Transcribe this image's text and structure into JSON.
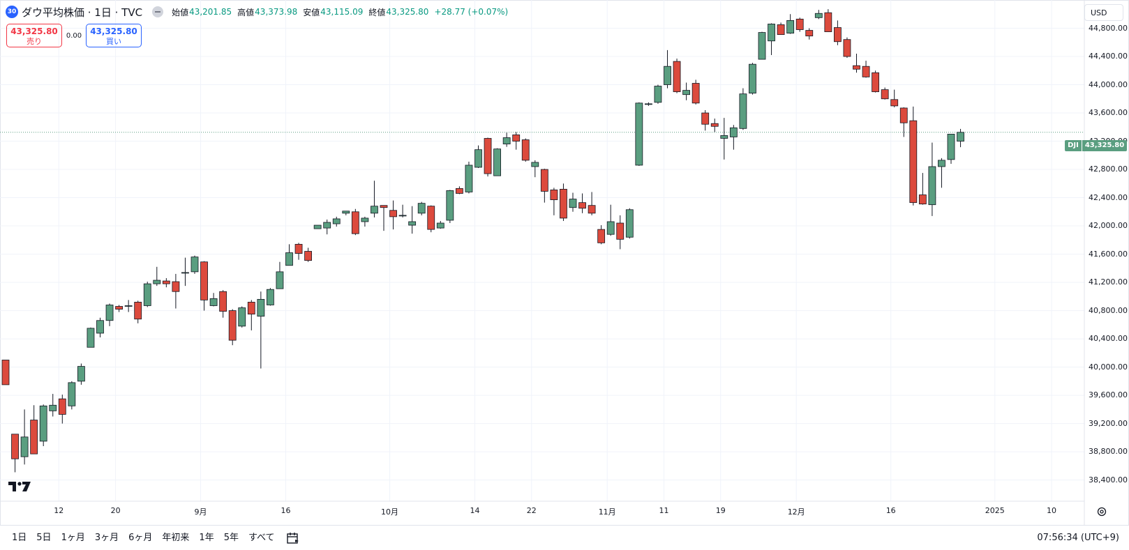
{
  "legend": {
    "badge": "30",
    "title": "ダウ平均株価 · 1日 · TVC",
    "open_label": "始値",
    "open": "43,201.85",
    "high_label": "高値",
    "high": "43,373.98",
    "low_label": "安値",
    "low": "43,115.09",
    "close_label": "終値",
    "close": "43,325.80",
    "change": "+28.77 (+0.07%)"
  },
  "trade": {
    "sell_price": "43,325.80",
    "sell_label": "売り",
    "spread": "0.00",
    "buy_price": "43,325.80",
    "buy_label": "買い"
  },
  "currency": "USD",
  "last_price_tag": {
    "symbol": "DJI",
    "price": "43,325.80"
  },
  "clock": "07:56:34 (UTC+9)",
  "ranges": [
    "1日",
    "5日",
    "1ヶ月",
    "3ヶ月",
    "6ヶ月",
    "年初来",
    "1年",
    "5年",
    "すべて"
  ],
  "colors": {
    "up": "#5a9e80",
    "down": "#dc4a3d",
    "wick": "#131722",
    "accent": "#2962ff"
  },
  "chart_data": {
    "type": "candlestick",
    "symbol": "DJI",
    "ylim": [
      38100,
      45200
    ],
    "y_ticks": [
      38400,
      38800,
      39200,
      39600,
      40000,
      40400,
      40800,
      41200,
      41600,
      42000,
      42400,
      42800,
      43200,
      43600,
      44000,
      44400,
      44800
    ],
    "y_tick_labels": [
      "38,400.00",
      "38,800.00",
      "39,200.00",
      "39,600.00",
      "40,000.00",
      "40,400.00",
      "40,800.00",
      "41,200.00",
      "41,600.00",
      "42,000.00",
      "42,400.00",
      "42,800.00",
      "43,200.00",
      "43,600.00",
      "44,000.00",
      "44,400.00",
      "44,800.00"
    ],
    "x_ticks": [
      {
        "label": "12",
        "index": 6
      },
      {
        "label": "20",
        "index": 12
      },
      {
        "label": "9月",
        "index": 21
      },
      {
        "label": "16",
        "index": 30
      },
      {
        "label": "10月",
        "index": 41
      },
      {
        "label": "14",
        "index": 50
      },
      {
        "label": "22",
        "index": 56
      },
      {
        "label": "11月",
        "index": 64
      },
      {
        "label": "11",
        "index": 70
      },
      {
        "label": "19",
        "index": 76
      },
      {
        "label": "12月",
        "index": 84
      },
      {
        "label": "16",
        "index": 94
      },
      {
        "label": "2025",
        "index": 105
      },
      {
        "label": "10",
        "index": 111
      }
    ],
    "last_close": 43325.8,
    "candles": [
      {
        "o": 40100,
        "h": 40100,
        "l": 39750,
        "c": 39750
      },
      {
        "o": 39050,
        "h": 39050,
        "l": 38510,
        "c": 38700
      },
      {
        "o": 38730,
        "h": 39400,
        "l": 38620,
        "c": 39010
      },
      {
        "o": 39250,
        "h": 39460,
        "l": 38820,
        "c": 38770
      },
      {
        "o": 38950,
        "h": 39470,
        "l": 38880,
        "c": 39450
      },
      {
        "o": 39380,
        "h": 39620,
        "l": 39300,
        "c": 39460
      },
      {
        "o": 39550,
        "h": 39610,
        "l": 39200,
        "c": 39330
      },
      {
        "o": 39450,
        "h": 39800,
        "l": 39400,
        "c": 39780
      },
      {
        "o": 39800,
        "h": 40050,
        "l": 39750,
        "c": 40010
      },
      {
        "o": 40280,
        "h": 40560,
        "l": 40280,
        "c": 40550
      },
      {
        "o": 40480,
        "h": 40700,
        "l": 40420,
        "c": 40660
      },
      {
        "o": 40660,
        "h": 40900,
        "l": 40580,
        "c": 40880
      },
      {
        "o": 40860,
        "h": 40880,
        "l": 40780,
        "c": 40820
      },
      {
        "o": 40870,
        "h": 40950,
        "l": 40780,
        "c": 40870
      },
      {
        "o": 40920,
        "h": 40940,
        "l": 40620,
        "c": 40680
      },
      {
        "o": 40870,
        "h": 41210,
        "l": 40850,
        "c": 41180
      },
      {
        "o": 41180,
        "h": 41420,
        "l": 41150,
        "c": 41230
      },
      {
        "o": 41220,
        "h": 41260,
        "l": 41130,
        "c": 41180
      },
      {
        "o": 41210,
        "h": 41320,
        "l": 40830,
        "c": 41070
      },
      {
        "o": 41330,
        "h": 41550,
        "l": 41150,
        "c": 41340
      },
      {
        "o": 41350,
        "h": 41580,
        "l": 41320,
        "c": 41560
      },
      {
        "o": 41490,
        "h": 41500,
        "l": 40800,
        "c": 40950
      },
      {
        "o": 40870,
        "h": 41050,
        "l": 40860,
        "c": 40970
      },
      {
        "o": 41070,
        "h": 41090,
        "l": 40700,
        "c": 40790
      },
      {
        "o": 40800,
        "h": 40820,
        "l": 40310,
        "c": 40380
      },
      {
        "o": 40580,
        "h": 40860,
        "l": 40560,
        "c": 40840
      },
      {
        "o": 40920,
        "h": 40950,
        "l": 40520,
        "c": 40750
      },
      {
        "o": 40720,
        "h": 41070,
        "l": 39980,
        "c": 40960
      },
      {
        "o": 40880,
        "h": 41120,
        "l": 40870,
        "c": 41100
      },
      {
        "o": 41110,
        "h": 41490,
        "l": 41110,
        "c": 41350
      },
      {
        "o": 41440,
        "h": 41740,
        "l": 41440,
        "c": 41620
      },
      {
        "o": 41740,
        "h": 41760,
        "l": 41520,
        "c": 41610
      },
      {
        "o": 41640,
        "h": 41690,
        "l": 41490,
        "c": 41510
      },
      {
        "o": 41960,
        "h": 42010,
        "l": 41970,
        "c": 42010
      },
      {
        "o": 41970,
        "h": 42090,
        "l": 41880,
        "c": 42050
      },
      {
        "o": 42030,
        "h": 42130,
        "l": 41990,
        "c": 42100
      },
      {
        "o": 42180,
        "h": 42210,
        "l": 42150,
        "c": 42210
      },
      {
        "o": 42200,
        "h": 42240,
        "l": 41870,
        "c": 41890
      },
      {
        "o": 42060,
        "h": 42130,
        "l": 41990,
        "c": 42110
      },
      {
        "o": 42180,
        "h": 42640,
        "l": 42120,
        "c": 42280
      },
      {
        "o": 42290,
        "h": 42290,
        "l": 41930,
        "c": 42260
      },
      {
        "o": 42220,
        "h": 42360,
        "l": 41950,
        "c": 42130
      },
      {
        "o": 42140,
        "h": 42300,
        "l": 42120,
        "c": 42150
      },
      {
        "o": 42010,
        "h": 42280,
        "l": 41890,
        "c": 42060
      },
      {
        "o": 42180,
        "h": 42340,
        "l": 42150,
        "c": 42320
      },
      {
        "o": 42280,
        "h": 42290,
        "l": 41910,
        "c": 41950
      },
      {
        "o": 41970,
        "h": 42070,
        "l": 41960,
        "c": 42040
      },
      {
        "o": 42080,
        "h": 42510,
        "l": 42040,
        "c": 42500
      },
      {
        "o": 42530,
        "h": 42560,
        "l": 42450,
        "c": 42460
      },
      {
        "o": 42480,
        "h": 42910,
        "l": 42460,
        "c": 42860
      },
      {
        "o": 42830,
        "h": 43140,
        "l": 42820,
        "c": 43080
      },
      {
        "o": 43240,
        "h": 43250,
        "l": 42700,
        "c": 42740
      },
      {
        "o": 42710,
        "h": 43100,
        "l": 42710,
        "c": 43090
      },
      {
        "o": 43160,
        "h": 43320,
        "l": 43120,
        "c": 43250
      },
      {
        "o": 43290,
        "h": 43330,
        "l": 43080,
        "c": 43200
      },
      {
        "o": 43220,
        "h": 43240,
        "l": 42910,
        "c": 42930
      },
      {
        "o": 42840,
        "h": 42930,
        "l": 42690,
        "c": 42900
      },
      {
        "o": 42800,
        "h": 42810,
        "l": 42330,
        "c": 42490
      },
      {
        "o": 42510,
        "h": 42540,
        "l": 42150,
        "c": 42370
      },
      {
        "o": 42520,
        "h": 42600,
        "l": 42070,
        "c": 42110
      },
      {
        "o": 42260,
        "h": 42470,
        "l": 42200,
        "c": 42380
      },
      {
        "o": 42330,
        "h": 42460,
        "l": 42180,
        "c": 42250
      },
      {
        "o": 42290,
        "h": 42480,
        "l": 42150,
        "c": 42180
      },
      {
        "o": 41950,
        "h": 42010,
        "l": 41740,
        "c": 41760
      },
      {
        "o": 41880,
        "h": 42300,
        "l": 41860,
        "c": 42060
      },
      {
        "o": 42040,
        "h": 42150,
        "l": 41670,
        "c": 41810
      },
      {
        "o": 41840,
        "h": 42250,
        "l": 41820,
        "c": 42230
      },
      {
        "o": 42860,
        "h": 43750,
        "l": 42850,
        "c": 43740
      },
      {
        "o": 43730,
        "h": 43750,
        "l": 43700,
        "c": 43730
      },
      {
        "o": 43750,
        "h": 44000,
        "l": 43730,
        "c": 43980
      },
      {
        "o": 44000,
        "h": 44490,
        "l": 43950,
        "c": 44260
      },
      {
        "o": 44330,
        "h": 44370,
        "l": 43880,
        "c": 43900
      },
      {
        "o": 43860,
        "h": 44030,
        "l": 43780,
        "c": 43920
      },
      {
        "o": 44020,
        "h": 44070,
        "l": 43720,
        "c": 43740
      },
      {
        "o": 43600,
        "h": 43640,
        "l": 43350,
        "c": 43440
      },
      {
        "o": 43450,
        "h": 43520,
        "l": 43330,
        "c": 43410
      },
      {
        "o": 43240,
        "h": 43530,
        "l": 42940,
        "c": 43280
      },
      {
        "o": 43260,
        "h": 43430,
        "l": 43080,
        "c": 43390
      },
      {
        "o": 43380,
        "h": 43950,
        "l": 43360,
        "c": 43870
      },
      {
        "o": 43880,
        "h": 44310,
        "l": 43860,
        "c": 44290
      },
      {
        "o": 44360,
        "h": 44750,
        "l": 44360,
        "c": 44740
      },
      {
        "o": 44620,
        "h": 44870,
        "l": 44420,
        "c": 44860
      },
      {
        "o": 44850,
        "h": 44880,
        "l": 44710,
        "c": 44710
      },
      {
        "o": 44730,
        "h": 45000,
        "l": 44720,
        "c": 44910
      },
      {
        "o": 44930,
        "h": 44950,
        "l": 44750,
        "c": 44780
      },
      {
        "o": 44770,
        "h": 44800,
        "l": 44640,
        "c": 44690
      },
      {
        "o": 44950,
        "h": 45060,
        "l": 44930,
        "c": 45010
      },
      {
        "o": 45020,
        "h": 45070,
        "l": 44750,
        "c": 44750
      },
      {
        "o": 44810,
        "h": 44910,
        "l": 44560,
        "c": 44610
      },
      {
        "o": 44640,
        "h": 44670,
        "l": 44380,
        "c": 44400
      },
      {
        "o": 44270,
        "h": 44440,
        "l": 44170,
        "c": 44220
      },
      {
        "o": 44260,
        "h": 44340,
        "l": 44100,
        "c": 44110
      },
      {
        "o": 44170,
        "h": 44200,
        "l": 43890,
        "c": 43900
      },
      {
        "o": 43930,
        "h": 43960,
        "l": 43790,
        "c": 43800
      },
      {
        "o": 43790,
        "h": 43930,
        "l": 43680,
        "c": 43700
      },
      {
        "o": 43670,
        "h": 43680,
        "l": 43260,
        "c": 43460
      },
      {
        "o": 43490,
        "h": 43690,
        "l": 42290,
        "c": 42330
      },
      {
        "o": 42440,
        "h": 42750,
        "l": 42300,
        "c": 42310
      },
      {
        "o": 42300,
        "h": 43180,
        "l": 42140,
        "c": 42840
      },
      {
        "o": 42840,
        "h": 42960,
        "l": 42540,
        "c": 42930
      },
      {
        "o": 42940,
        "h": 43300,
        "l": 42880,
        "c": 43300
      },
      {
        "o": 43200,
        "h": 43373.98,
        "l": 43115.09,
        "c": 43325.8
      }
    ]
  }
}
